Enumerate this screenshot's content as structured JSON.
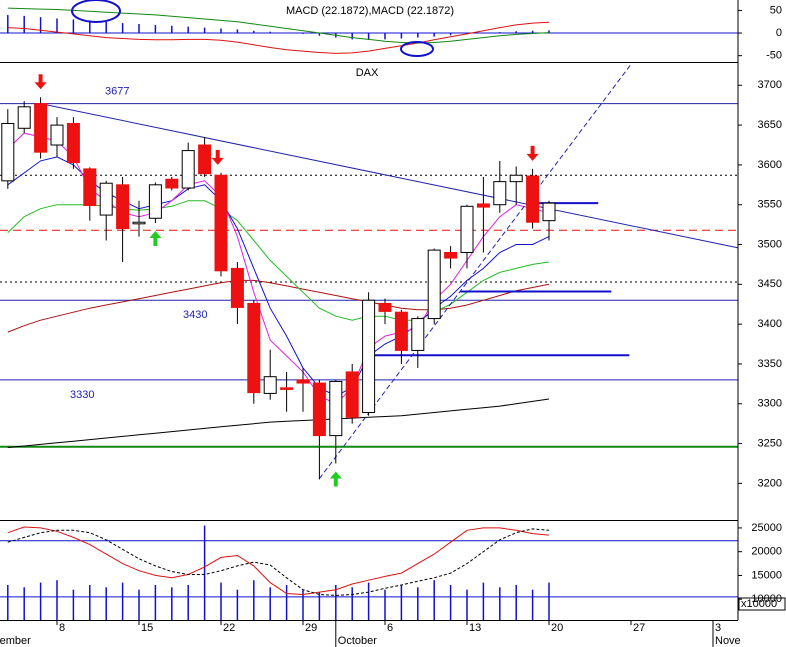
{
  "chart_data": [
    {
      "type": "macd",
      "title": "MACD (22.1872),MACD (22.1872)",
      "ylim": [
        -64,
        73
      ],
      "yticks": [
        50,
        0,
        -50
      ],
      "levels": [
        {
          "value": 0,
          "color": "#1111cc"
        }
      ],
      "histogram": {
        "color": "#1111cc",
        "values": [
          null,
          null,
          40,
          38,
          35,
          32,
          30,
          28,
          25,
          22,
          20,
          18,
          16,
          14,
          12,
          10,
          8,
          5,
          3,
          1,
          -2,
          -6,
          -10,
          -14,
          -15,
          -14,
          -12,
          -10,
          -8,
          -5,
          -3,
          -1,
          2,
          4,
          5,
          6,
          null,
          null,
          null,
          null,
          null,
          null,
          null,
          null,
          null,
          null
        ]
      },
      "series": [
        {
          "color": "#dd1111",
          "values": [
            null,
            null,
            12,
            10,
            6,
            2,
            -2,
            -6,
            -10,
            -12,
            -14,
            -15,
            -15,
            -14,
            -14,
            -16,
            -20,
            -26,
            -32,
            -37,
            -40,
            -43,
            -45,
            -44,
            -40,
            -34,
            -28,
            -22,
            -15,
            -8,
            -2,
            5,
            12,
            18,
            22,
            24,
            null,
            null,
            null,
            null,
            null,
            null,
            null,
            null,
            null,
            null
          ]
        },
        {
          "color": "#118811",
          "values": [
            null,
            null,
            55,
            54,
            53,
            52,
            50,
            48,
            46,
            44,
            42,
            40,
            37,
            34,
            31,
            28,
            25,
            20,
            15,
            10,
            5,
            0,
            -5,
            -10,
            -14,
            -18,
            -21,
            -22,
            -21,
            -18,
            -14,
            -10,
            -6,
            -3,
            -1,
            1,
            null,
            null,
            null,
            null,
            null,
            null,
            null,
            null,
            null,
            null
          ]
        }
      ]
    },
    {
      "type": "candlestick",
      "title": "DAX",
      "categories": [
        null,
        null,
        null,
        null,
        null,
        "8",
        null,
        null,
        null,
        null,
        "15",
        null,
        null,
        null,
        null,
        "22",
        null,
        null,
        null,
        null,
        "29",
        null,
        null,
        null,
        null,
        "6",
        null,
        null,
        null,
        null,
        "13",
        null,
        null,
        null,
        null,
        "20",
        null,
        null,
        null,
        null,
        "27",
        null,
        null,
        null,
        null,
        "3"
      ],
      "months": [
        "September",
        null,
        null,
        null,
        null,
        null,
        null,
        null,
        null,
        null,
        null,
        null,
        null,
        null,
        null,
        null,
        null,
        null,
        null,
        null,
        null,
        null,
        "October",
        null,
        null,
        null,
        null,
        null,
        null,
        null,
        null,
        null,
        null,
        null,
        null,
        null,
        null,
        null,
        null,
        null,
        null,
        null,
        null,
        null,
        null,
        "November"
      ],
      "ylim": [
        3154,
        3728
      ],
      "yticks": [
        3700,
        3650,
        3600,
        3550,
        3500,
        3450,
        3400,
        3350,
        3300,
        3250,
        3200
      ],
      "up_color": "#ffffff",
      "down_color": "#ee1111",
      "open": [
        null,
        null,
        3580,
        3646,
        3677,
        3625,
        3652,
        3595,
        3537,
        3575,
        3526,
        3533,
        3582,
        3571,
        3625,
        3587,
        3470,
        3426,
        3313,
        3320,
        3330,
        3326,
        3260,
        3340,
        3289,
        3426,
        3415,
        3367,
        3407,
        3490,
        3490,
        3551,
        3550,
        3579,
        3586,
        3530,
        null,
        null,
        null,
        null,
        null,
        null,
        null,
        null,
        null,
        null
      ],
      "high": [
        null,
        null,
        3670,
        3680,
        3685,
        3660,
        3660,
        3597,
        3580,
        3585,
        3555,
        3578,
        3585,
        3628,
        3635,
        3590,
        3478,
        3430,
        3368,
        3340,
        3345,
        3330,
        3330,
        3350,
        3440,
        3432,
        3418,
        3410,
        3495,
        3498,
        3550,
        3585,
        3605,
        3598,
        3595,
        3555,
        null,
        null,
        null,
        null,
        null,
        null,
        null,
        null,
        null,
        null
      ],
      "low": [
        null,
        null,
        3570,
        3640,
        3608,
        3610,
        3595,
        3530,
        3505,
        3478,
        3510,
        3527,
        3568,
        3568,
        3585,
        3460,
        3400,
        3300,
        3305,
        3290,
        3290,
        3205,
        3225,
        3275,
        3285,
        3400,
        3350,
        3345,
        3400,
        3470,
        3470,
        3490,
        3540,
        3550,
        3520,
        3505,
        null,
        null,
        null,
        null,
        null,
        null,
        null,
        null,
        null,
        null
      ],
      "close": [
        null,
        null,
        3652,
        3673,
        3616,
        3650,
        3603,
        3549,
        3577,
        3520,
        3528,
        3575,
        3571,
        3618,
        3589,
        3467,
        3421,
        3314,
        3334,
        3318,
        3326,
        3260,
        3328,
        3283,
        3430,
        3416,
        3367,
        3407,
        3493,
        3483,
        3548,
        3547,
        3579,
        3587,
        3528,
        3552,
        null,
        null,
        null,
        null,
        null,
        null,
        null,
        null,
        null,
        null
      ],
      "series": [
        {
          "color": "#000000",
          "values": [
            null,
            null,
            3245,
            3247,
            3249,
            3251,
            3253,
            3255,
            3257,
            3259,
            3261,
            3263,
            3265,
            3267,
            3269,
            3271,
            3273,
            3275,
            3277,
            3278,
            3279,
            3280,
            3281,
            3282,
            3283,
            3284,
            3285,
            3287,
            3289,
            3291,
            3293,
            3295,
            3297,
            3300,
            3303,
            3306,
            null,
            null,
            null,
            null,
            null,
            null,
            null,
            null,
            null,
            null
          ]
        },
        {
          "color": "#aa1111",
          "values": [
            null,
            null,
            3390,
            3398,
            3405,
            3410,
            3415,
            3420,
            3424,
            3428,
            3432,
            3436,
            3440,
            3444,
            3448,
            3452,
            3455,
            3455,
            3452,
            3448,
            3444,
            3440,
            3436,
            3432,
            3428,
            3424,
            3420,
            3418,
            3418,
            3420,
            3424,
            3430,
            3436,
            3442,
            3446,
            3450,
            null,
            null,
            null,
            null,
            null,
            null,
            null,
            null,
            null,
            null
          ]
        },
        {
          "color": "#22bb22",
          "values": [
            null,
            null,
            3515,
            3535,
            3545,
            3550,
            3550,
            3550,
            3548,
            3545,
            3543,
            3545,
            3548,
            3555,
            3555,
            3545,
            3530,
            3505,
            3480,
            3460,
            3440,
            3420,
            3410,
            3405,
            3410,
            3410,
            3405,
            3405,
            3415,
            3425,
            3440,
            3455,
            3465,
            3470,
            3475,
            3478,
            null,
            null,
            null,
            null,
            null,
            null,
            null,
            null,
            null,
            null
          ]
        },
        {
          "color": "#1111cc",
          "values": [
            null,
            null,
            3575,
            3590,
            3605,
            3610,
            3600,
            3580,
            3565,
            3555,
            3545,
            3550,
            3555,
            3570,
            3575,
            3555,
            3520,
            3470,
            3420,
            3385,
            3345,
            3320,
            3310,
            3320,
            3360,
            3375,
            3385,
            3400,
            3420,
            3435,
            3455,
            3470,
            3490,
            3500,
            3500,
            3510,
            null,
            null,
            null,
            null,
            null,
            null,
            null,
            null,
            null,
            null
          ]
        },
        {
          "color": "#dd22dd",
          "values": [
            null,
            null,
            3620,
            3640,
            3635,
            3630,
            3610,
            3570,
            3555,
            3540,
            3535,
            3540,
            3555,
            3575,
            3580,
            3560,
            3510,
            3440,
            3380,
            3360,
            3340,
            3310,
            3300,
            3320,
            3370,
            3385,
            3390,
            3395,
            3430,
            3450,
            3480,
            3510,
            3535,
            3550,
            3545,
            3540,
            null,
            null,
            null,
            null,
            null,
            null,
            null,
            null,
            null,
            null
          ]
        }
      ],
      "levels": [
        {
          "value": 3677,
          "label": "3677",
          "color": "#2222aa",
          "style": "solid"
        },
        {
          "value": 3587,
          "color": "#000000",
          "style": "dotted"
        },
        {
          "value": 3518,
          "color": "#ee1111",
          "style": "dashed"
        },
        {
          "value": 3453,
          "color": "#000000",
          "style": "dotted"
        },
        {
          "value": 3430,
          "label": "3430",
          "color": "#2222aa",
          "style": "solid"
        },
        {
          "value": 3330,
          "label": "3330",
          "color": "#2222aa",
          "style": "solid"
        },
        {
          "value": 3246,
          "color": "#118811",
          "style": "thick"
        }
      ],
      "segments": [
        {
          "value": 3552,
          "from": 33.8,
          "to": 38,
          "color": "#1111cc"
        },
        {
          "value": 3441,
          "from": 29.6,
          "to": 38.8,
          "color": "#1111cc"
        },
        {
          "value": 3361,
          "from": 24.1,
          "to": 39.9,
          "color": "#1111cc"
        }
      ],
      "trendlines": [
        {
          "from": [
            4,
            3677
          ],
          "to": [
            46.5,
            3496
          ],
          "color": "#2222aa",
          "style": "solid"
        },
        {
          "from": [
            21,
            3206
          ],
          "to": [
            40.06,
            3728
          ],
          "color": "#2222aa",
          "style": "dashed"
        }
      ],
      "arrows": [
        {
          "index": 4,
          "dir": "down",
          "color": "#ee1111"
        },
        {
          "index": 14.8,
          "dir": "down",
          "color": "#ee1111"
        },
        {
          "index": 34,
          "dir": "down",
          "color": "#ee1111"
        },
        {
          "index": 11,
          "dir": "up",
          "color": "#22cc22"
        },
        {
          "index": 22,
          "dir": "up",
          "color": "#22cc22"
        }
      ]
    },
    {
      "type": "volume",
      "scale_label": "x10000",
      "ylim": [
        5625,
        26458
      ],
      "yticks": [
        25000,
        20000,
        15000,
        10000
      ],
      "levels": [
        {
          "value": 22300,
          "color": "#1111cc"
        },
        {
          "value": 10500,
          "color": "#1111cc"
        }
      ],
      "bars": {
        "color": "#1111cc",
        "values": [
          null,
          null,
          13000,
          12500,
          13500,
          14000,
          12000,
          13000,
          12500,
          13500,
          12000,
          13000,
          12500,
          13000,
          25500,
          13500,
          12000,
          14000,
          12500,
          13000,
          12000,
          11500,
          13000,
          12500,
          13500,
          12000,
          13000,
          12500,
          14000,
          13000,
          12000,
          13500,
          12500,
          13000,
          12000,
          13500,
          null,
          null,
          null,
          null,
          null,
          null,
          null,
          null,
          null,
          null
        ]
      },
      "series": [
        {
          "color": "#dd1111",
          "style": "solid",
          "values": [
            null,
            null,
            24000,
            25200,
            25000,
            24300,
            23000,
            21500,
            19500,
            17500,
            16000,
            15000,
            14500,
            15200,
            16800,
            18800,
            19200,
            17000,
            13500,
            11200,
            11000,
            11500,
            12000,
            13200,
            14000,
            14800,
            15500,
            17500,
            19500,
            22000,
            24500,
            25000,
            25000,
            24500,
            23800,
            23500,
            null,
            null,
            null,
            null,
            null,
            null,
            null,
            null,
            null,
            null
          ]
        },
        {
          "color": "#000000",
          "style": "dashed",
          "values": [
            null,
            null,
            22000,
            23000,
            24000,
            24500,
            24500,
            24000,
            22500,
            20500,
            18500,
            17000,
            15800,
            15200,
            15200,
            16000,
            17000,
            17800,
            17200,
            14500,
            12000,
            11000,
            10800,
            11000,
            11500,
            12300,
            13000,
            13800,
            14500,
            15500,
            17500,
            20000,
            22500,
            24000,
            24800,
            24500,
            null,
            null,
            null,
            null,
            null,
            null,
            null,
            null,
            null,
            null
          ]
        }
      ]
    }
  ]
}
